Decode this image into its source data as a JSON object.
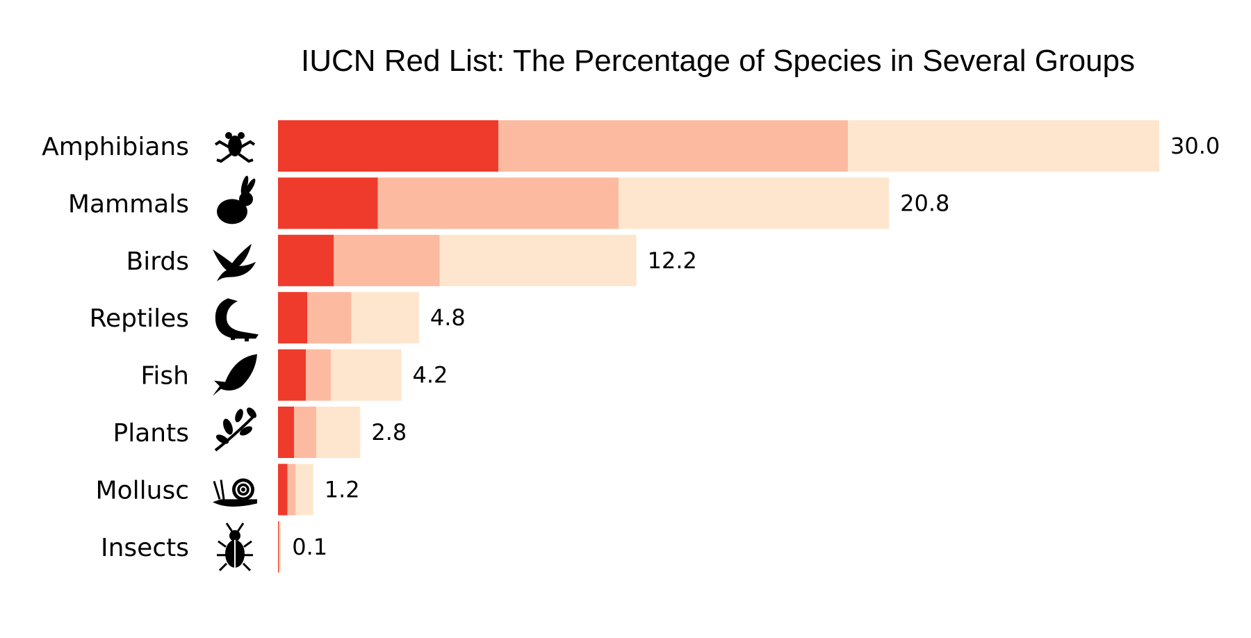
{
  "chart_data": {
    "type": "bar",
    "orientation": "horizontal",
    "stacked": true,
    "title": "IUCN Red List: The Percentage of Species in Several Groups",
    "categories": [
      "Amphibians",
      "Mammals",
      "Birds",
      "Reptiles",
      "Fish",
      "Plants",
      "Mollusc",
      "Insects"
    ],
    "icons": [
      "frog-icon",
      "rabbit-icon",
      "bird-icon",
      "crocodile-icon",
      "fish-icon",
      "plant-icon",
      "snail-icon",
      "beetle-icon"
    ],
    "totals": [
      "30.0",
      "20.8",
      "12.2",
      "4.8",
      "4.2",
      "2.8",
      "1.2",
      "0.1"
    ],
    "series": [
      {
        "values": [
          7.5,
          3.4,
          1.9,
          1.0,
          0.95,
          0.55,
          0.32,
          0.03
        ],
        "color": "#ef3b2c"
      },
      {
        "values": [
          11.9,
          8.2,
          3.6,
          1.5,
          0.85,
          0.75,
          0.28,
          0.03
        ],
        "color": "#fcbba1"
      },
      {
        "values": [
          10.6,
          9.2,
          6.7,
          2.3,
          2.4,
          1.5,
          0.6,
          0.04
        ],
        "color": "#fee6ce"
      }
    ],
    "xlim": [
      0,
      30
    ],
    "grid": false,
    "legend": "none"
  }
}
